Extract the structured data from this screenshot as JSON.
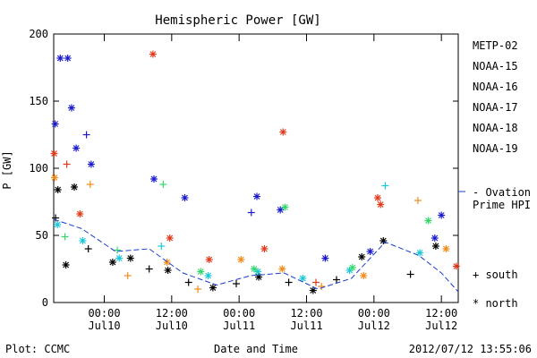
{
  "chart_data": {
    "type": "scatter",
    "title": "Hemispheric Power [GW]",
    "ylabel": "P [GW]",
    "xlabel": "Date and Time",
    "ylim": [
      0,
      200
    ],
    "xlim": [
      "2012-07-09 15:00",
      "2012-07-12 15:00"
    ],
    "yticks": [
      "0",
      "50",
      "100",
      "150",
      "200"
    ],
    "xticks": [
      {
        "time": "00:00",
        "date": "Jul10",
        "at": "2012-07-10 00:00"
      },
      {
        "time": "12:00",
        "date": "Jul10",
        "at": "2012-07-10 12:00"
      },
      {
        "time": "00:00",
        "date": "Jul11",
        "at": "2012-07-11 00:00"
      },
      {
        "time": "12:00",
        "date": "Jul11",
        "at": "2012-07-11 12:00"
      },
      {
        "time": "00:00",
        "date": "Jul12",
        "at": "2012-07-12 00:00"
      },
      {
        "time": "12:00",
        "date": "Jul12",
        "at": "2012-07-12 12:00"
      }
    ],
    "grid": false,
    "legend_position": "right",
    "series": [
      {
        "name": "METP-02",
        "color": "#000000",
        "values": [
          {
            "x": "2012-07-09 15:20",
            "y": 63,
            "h": "south"
          },
          {
            "x": "2012-07-09 15:45",
            "y": 84,
            "h": "north"
          },
          {
            "x": "2012-07-09 17:10",
            "y": 28,
            "h": "north"
          },
          {
            "x": "2012-07-09 18:40",
            "y": 86,
            "h": "north"
          },
          {
            "x": "2012-07-09 21:10",
            "y": 40,
            "h": "south"
          },
          {
            "x": "2012-07-10 01:30",
            "y": 30,
            "h": "north"
          },
          {
            "x": "2012-07-10 04:40",
            "y": 33,
            "h": "north"
          },
          {
            "x": "2012-07-10 08:00",
            "y": 25,
            "h": "south"
          },
          {
            "x": "2012-07-10 11:20",
            "y": 24,
            "h": "north"
          },
          {
            "x": "2012-07-10 15:00",
            "y": 15,
            "h": "south"
          },
          {
            "x": "2012-07-10 19:20",
            "y": 11,
            "h": "north"
          },
          {
            "x": "2012-07-10 23:30",
            "y": 14,
            "h": "south"
          },
          {
            "x": "2012-07-11 03:30",
            "y": 19,
            "h": "north"
          },
          {
            "x": "2012-07-11 08:50",
            "y": 15,
            "h": "south"
          },
          {
            "x": "2012-07-11 13:10",
            "y": 9,
            "h": "north"
          },
          {
            "x": "2012-07-11 17:20",
            "y": 17,
            "h": "south"
          },
          {
            "x": "2012-07-11 21:50",
            "y": 34,
            "h": "north"
          },
          {
            "x": "2012-07-12 01:40",
            "y": 46,
            "h": "north"
          },
          {
            "x": "2012-07-12 06:30",
            "y": 21,
            "h": "south"
          },
          {
            "x": "2012-07-12 11:00",
            "y": 42,
            "h": "north"
          }
        ]
      },
      {
        "name": "NOAA-15",
        "color": "#1a1acc",
        "values": [
          {
            "x": "2012-07-09 15:15",
            "y": 133,
            "h": "north"
          },
          {
            "x": "2012-07-09 16:10",
            "y": 182,
            "h": "north"
          },
          {
            "x": "2012-07-09 17:30",
            "y": 182,
            "h": "north"
          },
          {
            "x": "2012-07-09 18:10",
            "y": 145,
            "h": "north"
          },
          {
            "x": "2012-07-09 19:00",
            "y": 115,
            "h": "north"
          },
          {
            "x": "2012-07-09 20:50",
            "y": 125,
            "h": "south"
          },
          {
            "x": "2012-07-09 21:40",
            "y": 103,
            "h": "north"
          },
          {
            "x": "2012-07-10 08:50",
            "y": 92,
            "h": "north"
          },
          {
            "x": "2012-07-10 14:20",
            "y": 78,
            "h": "north"
          },
          {
            "x": "2012-07-11 02:10",
            "y": 67,
            "h": "south"
          },
          {
            "x": "2012-07-11 03:10",
            "y": 79,
            "h": "north"
          },
          {
            "x": "2012-07-11 07:20",
            "y": 69,
            "h": "north"
          },
          {
            "x": "2012-07-11 15:20",
            "y": 33,
            "h": "north"
          },
          {
            "x": "2012-07-11 23:20",
            "y": 38,
            "h": "north"
          },
          {
            "x": "2012-07-12 10:50",
            "y": 48,
            "h": "north"
          },
          {
            "x": "2012-07-12 12:00",
            "y": 65,
            "h": "north"
          }
        ]
      },
      {
        "name": "NOAA-16",
        "color": "#1ac8d8",
        "values": [
          {
            "x": "2012-07-09 15:40",
            "y": 58,
            "h": "north"
          },
          {
            "x": "2012-07-09 20:10",
            "y": 46,
            "h": "north"
          },
          {
            "x": "2012-07-10 02:40",
            "y": 33,
            "h": "north"
          },
          {
            "x": "2012-07-10 10:10",
            "y": 42,
            "h": "south"
          },
          {
            "x": "2012-07-10 18:30",
            "y": 20,
            "h": "north"
          },
          {
            "x": "2012-07-11 03:20",
            "y": 23,
            "h": "north"
          },
          {
            "x": "2012-07-11 11:20",
            "y": 18,
            "h": "north"
          },
          {
            "x": "2012-07-11 19:40",
            "y": 24,
            "h": "north"
          },
          {
            "x": "2012-07-12 02:00",
            "y": 87,
            "h": "south"
          },
          {
            "x": "2012-07-12 08:10",
            "y": 37,
            "h": "north"
          }
        ]
      },
      {
        "name": "NOAA-17",
        "color": "#33d86b",
        "values": [
          {
            "x": "2012-07-09 17:00",
            "y": 49,
            "h": "south"
          },
          {
            "x": "2012-07-10 02:20",
            "y": 39,
            "h": "south"
          },
          {
            "x": "2012-07-10 10:30",
            "y": 88,
            "h": "south"
          },
          {
            "x": "2012-07-10 17:10",
            "y": 23,
            "h": "north"
          },
          {
            "x": "2012-07-11 02:40",
            "y": 25,
            "h": "north"
          },
          {
            "x": "2012-07-11 08:10",
            "y": 71,
            "h": "north"
          },
          {
            "x": "2012-07-11 20:10",
            "y": 26,
            "h": "north"
          },
          {
            "x": "2012-07-12 09:40",
            "y": 61,
            "h": "north"
          }
        ]
      },
      {
        "name": "NOAA-18",
        "color": "#f08c1a",
        "values": [
          {
            "x": "2012-07-09 15:10",
            "y": 93,
            "h": "north"
          },
          {
            "x": "2012-07-09 21:30",
            "y": 88,
            "h": "south"
          },
          {
            "x": "2012-07-10 04:10",
            "y": 20,
            "h": "south"
          },
          {
            "x": "2012-07-10 11:10",
            "y": 30,
            "h": "north"
          },
          {
            "x": "2012-07-10 16:40",
            "y": 10,
            "h": "south"
          },
          {
            "x": "2012-07-11 00:20",
            "y": 32,
            "h": "north"
          },
          {
            "x": "2012-07-11 07:40",
            "y": 25,
            "h": "north"
          },
          {
            "x": "2012-07-11 14:40",
            "y": 12,
            "h": "south"
          },
          {
            "x": "2012-07-11 22:10",
            "y": 20,
            "h": "north"
          },
          {
            "x": "2012-07-12 07:50",
            "y": 76,
            "h": "south"
          },
          {
            "x": "2012-07-12 12:50",
            "y": 40,
            "h": "north"
          }
        ]
      },
      {
        "name": "NOAA-19",
        "color": "#e03a1a",
        "values": [
          {
            "x": "2012-07-09 15:05",
            "y": 111,
            "h": "north"
          },
          {
            "x": "2012-07-09 17:20",
            "y": 103,
            "h": "south"
          },
          {
            "x": "2012-07-09 19:40",
            "y": 66,
            "h": "north"
          },
          {
            "x": "2012-07-10 08:40",
            "y": 185,
            "h": "north"
          },
          {
            "x": "2012-07-10 11:40",
            "y": 48,
            "h": "north"
          },
          {
            "x": "2012-07-10 18:40",
            "y": 32,
            "h": "north"
          },
          {
            "x": "2012-07-11 04:30",
            "y": 40,
            "h": "north"
          },
          {
            "x": "2012-07-11 07:50",
            "y": 127,
            "h": "north"
          },
          {
            "x": "2012-07-11 13:40",
            "y": 15,
            "h": "south"
          },
          {
            "x": "2012-07-12 00:40",
            "y": 78,
            "h": "north"
          },
          {
            "x": "2012-07-12 01:10",
            "y": 73,
            "h": "north"
          },
          {
            "x": "2012-07-12 14:40",
            "y": 27,
            "h": "north"
          }
        ]
      },
      {
        "name": "- Ovation Prime HPI",
        "color": "#1a3ccc",
        "values": [
          {
            "x": "2012-07-09 15:00",
            "y": 62
          },
          {
            "x": "2012-07-09 20:00",
            "y": 55
          },
          {
            "x": "2012-07-10 02:00",
            "y": 38
          },
          {
            "x": "2012-07-10 08:00",
            "y": 40
          },
          {
            "x": "2012-07-10 14:00",
            "y": 22
          },
          {
            "x": "2012-07-10 20:00",
            "y": 13
          },
          {
            "x": "2012-07-11 02:00",
            "y": 20
          },
          {
            "x": "2012-07-11 08:00",
            "y": 22
          },
          {
            "x": "2012-07-11 14:00",
            "y": 10
          },
          {
            "x": "2012-07-11 20:00",
            "y": 18
          },
          {
            "x": "2012-07-12 02:00",
            "y": 45
          },
          {
            "x": "2012-07-12 08:00",
            "y": 35
          },
          {
            "x": "2012-07-12 12:00",
            "y": 22
          },
          {
            "x": "2012-07-12 15:00",
            "y": 8
          }
        ]
      }
    ],
    "legend": {
      "series": [
        "METP-02",
        "NOAA-15",
        "NOAA-16",
        "NOAA-17",
        "NOAA-18",
        "NOAA-19"
      ],
      "ovation": [
        "- Ovation",
        "Prime HPI"
      ],
      "south": "+ south",
      "north": "* north"
    },
    "footer": {
      "left": "Plot: CCMC",
      "right": "2012/07/12 13:55:06"
    }
  }
}
